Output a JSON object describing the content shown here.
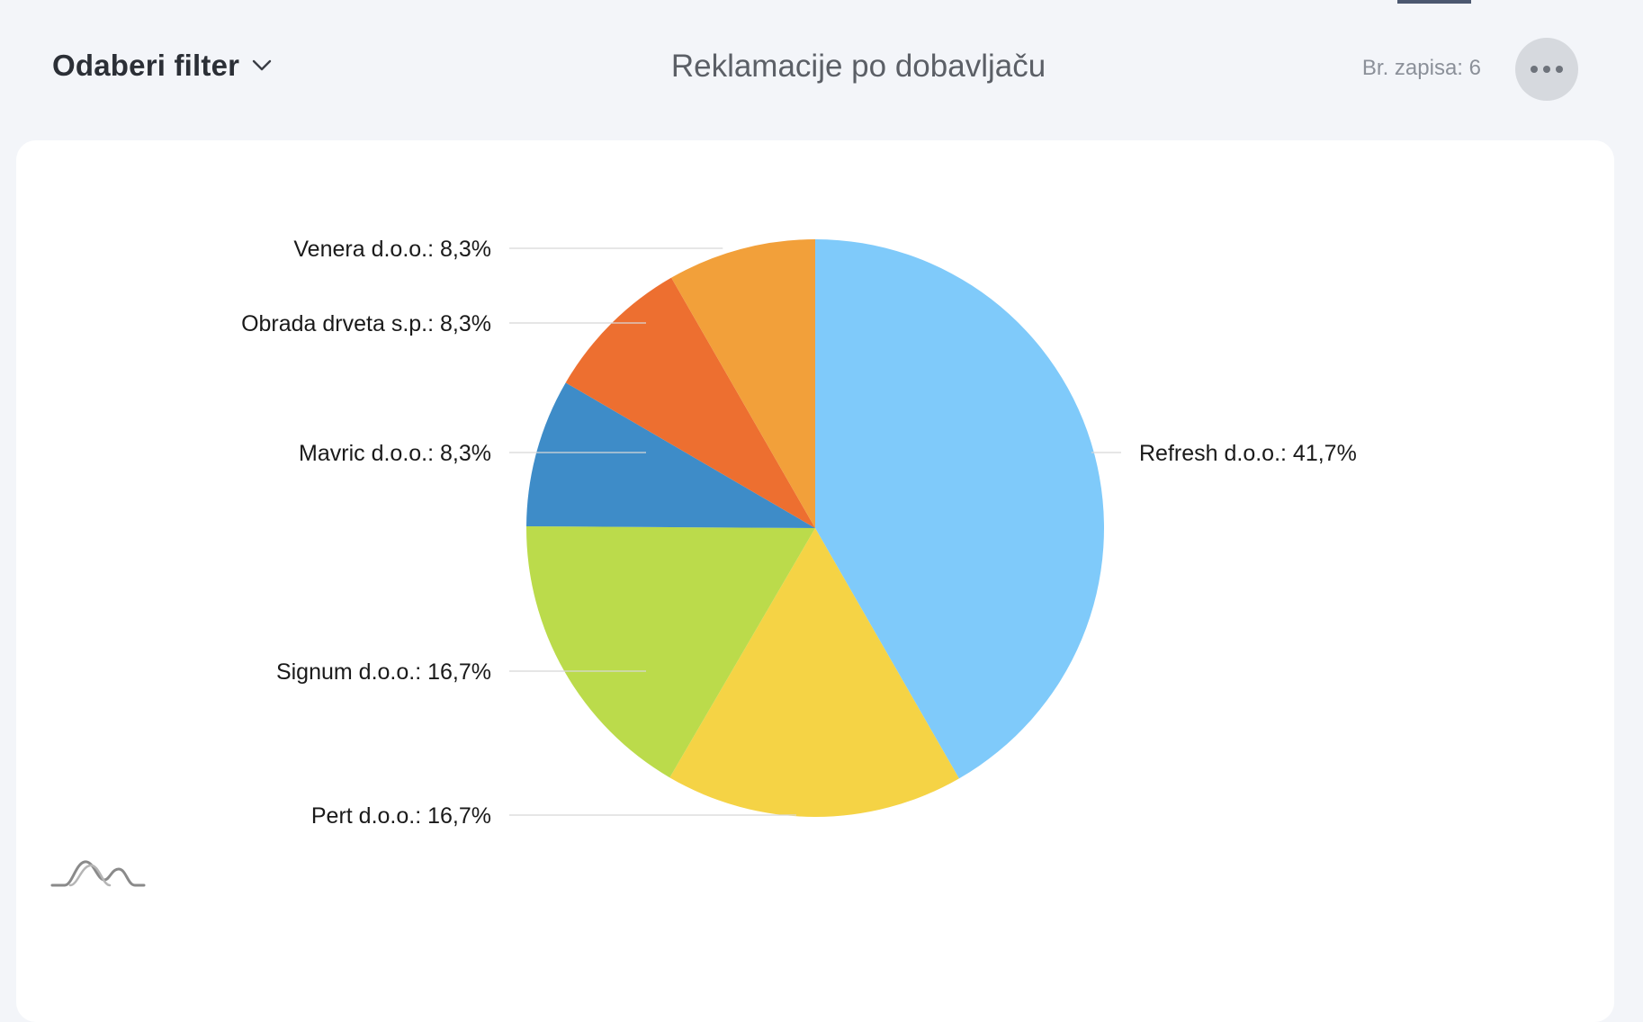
{
  "header": {
    "filter_label": "Odaberi filter",
    "title": "Reklamacije po dobavljaču",
    "record_count": "Br. zapisa: 6",
    "more_icon": "more-horizontal-icon",
    "chevron_icon": "chevron-down-icon"
  },
  "chart_data": {
    "type": "pie",
    "title": "Reklamacije po dobavljaču",
    "slices": [
      {
        "name": "Refresh d.o.o.",
        "value": 41.7,
        "label": "Refresh d.o.o.: 41,7%",
        "color": "#7fcafa"
      },
      {
        "name": "Pert d.o.o.",
        "value": 16.7,
        "label": "Pert d.o.o.: 16,7%",
        "color": "#f5d345"
      },
      {
        "name": "Signum d.o.o.",
        "value": 16.7,
        "label": "Signum d.o.o.: 16,7%",
        "color": "#bbdb4b"
      },
      {
        "name": "Mavric d.o.o.",
        "value": 8.3,
        "label": "Mavric d.o.o.: 8,3%",
        "color": "#3e8cc8"
      },
      {
        "name": "Obrada drveta  s.p.",
        "value": 8.3,
        "label": "Obrada drveta  s.p.: 8,3%",
        "color": "#ed6f30"
      },
      {
        "name": "Venera d.o.o.",
        "value": 8.3,
        "label": "Venera d.o.o.: 8,3%",
        "color": "#f2a03a"
      }
    ],
    "legend": "none"
  },
  "footer": {
    "chart_type_icon": "distribution-curve-icon"
  }
}
